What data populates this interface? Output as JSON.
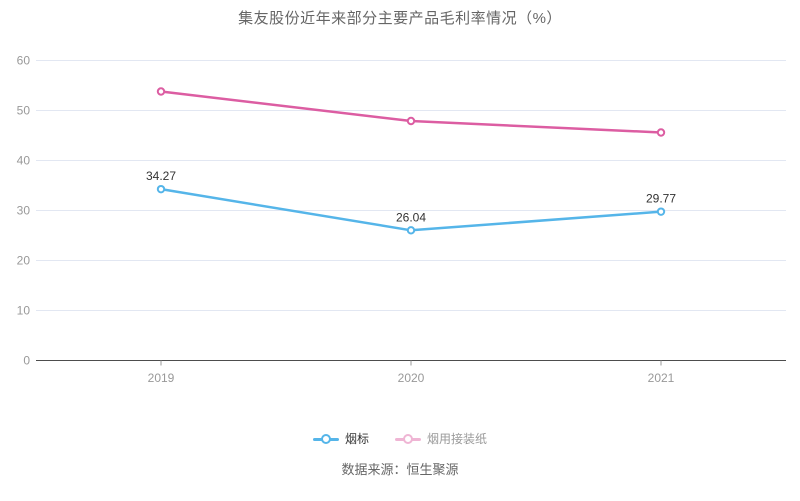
{
  "chart_data": {
    "type": "line",
    "title": "集友股份近年来部分主要产品毛利率情况（%）",
    "categories": [
      "2019",
      "2020",
      "2021"
    ],
    "series": [
      {
        "name": "烟标",
        "color": "#55b5e9",
        "values": [
          34.27,
          26.04,
          29.77
        ],
        "point_labels": [
          "34.27",
          "26.04",
          "29.77"
        ],
        "show_point_labels": true
      },
      {
        "name": "烟用接装纸",
        "color": "#dc5da2",
        "values": [
          53.8,
          47.9,
          45.6
        ],
        "point_labels": [],
        "show_point_labels": false
      }
    ],
    "xlabel": "",
    "ylabel": "",
    "ylim": [
      0,
      60
    ],
    "yticks": [
      0,
      10,
      20,
      30,
      40,
      50,
      60
    ],
    "grid": "horizontal",
    "legend_position": "bottom"
  },
  "legend": {
    "items": [
      {
        "label": "烟标",
        "color": "#55b5e9",
        "text_color": "#333333",
        "dimmed": false
      },
      {
        "label": "烟用接装纸",
        "color": "#dc5da2",
        "text_color": "#999999",
        "dimmed": true
      }
    ]
  },
  "footer": {
    "source_label": "数据来源：恒生聚源"
  },
  "colors": {
    "grid": "#e2e7f2",
    "axis_line": "#4d4d4d",
    "tick_mark": "#999999",
    "tick_label": "#999999",
    "title": "#666666",
    "point_label": "#333333",
    "footer_text": "#666666",
    "background": "#ffffff"
  }
}
